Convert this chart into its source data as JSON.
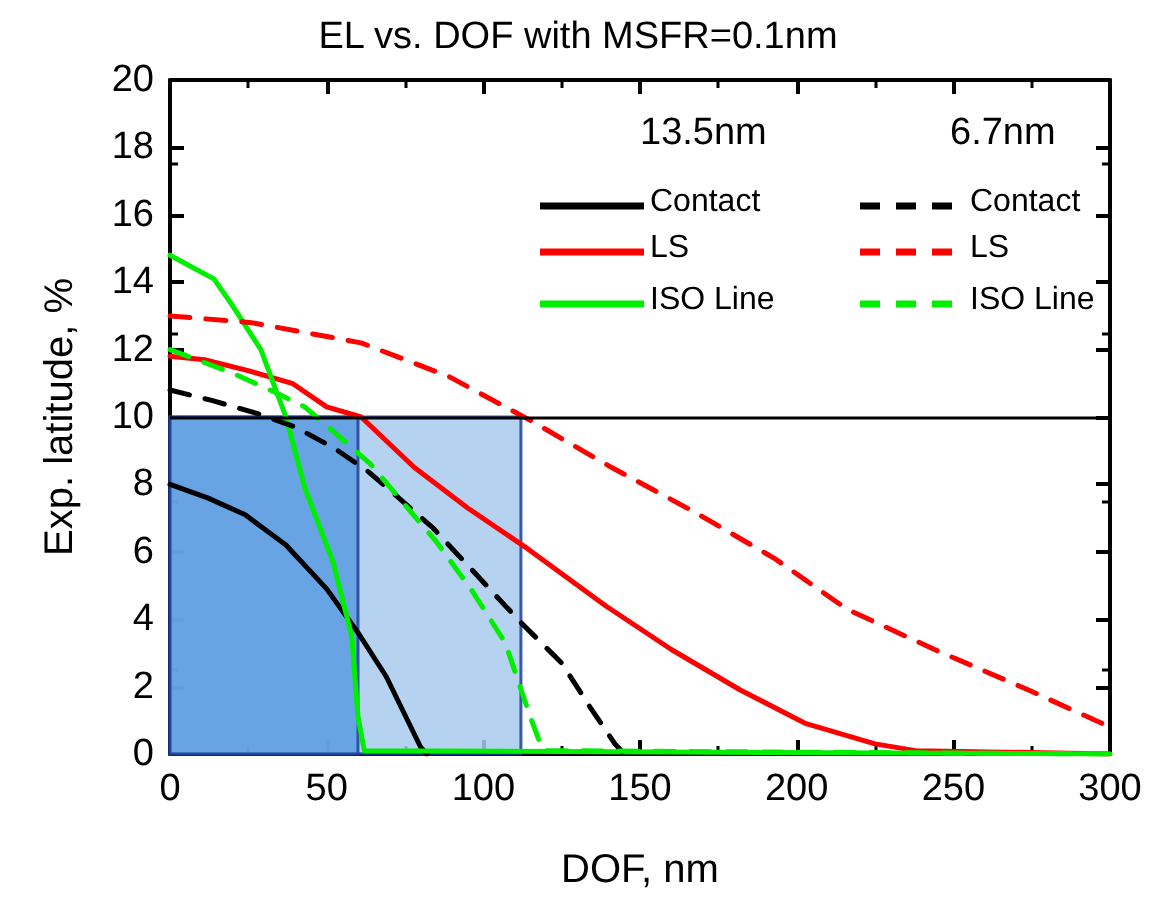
{
  "chart_data": {
    "type": "line",
    "title": "EL vs. DOF with MSFR=0.1nm",
    "xlabel": "DOF, nm",
    "ylabel": "Exp. latitude, %",
    "xlim": [
      0,
      300
    ],
    "xticks": [
      0,
      50,
      100,
      150,
      200,
      250,
      300
    ],
    "ylim": [
      0,
      20
    ],
    "yticks": [
      0,
      2,
      4,
      6,
      8,
      10,
      12,
      14,
      16,
      18,
      20
    ],
    "grid": false,
    "legend": "top right",
    "marker": "none",
    "annotations": [
      "13.5nm",
      "6.7nm"
    ],
    "ref_lines": [
      {
        "axis": "y",
        "value": 10,
        "label": null,
        "color": "#000000"
      }
    ],
    "bands": [
      {
        "axis": "x",
        "from": 0,
        "to": 112,
        "label": null,
        "color": "#a8cbef"
      },
      {
        "axis": "x",
        "from": 0,
        "to": 60,
        "label": null,
        "color": "#5b9be0"
      }
    ],
    "series": [
      {
        "name": "Contact",
        "color": "#000000",
        "line_style": "solid",
        "x": [
          0,
          12,
          24,
          37,
          50,
          60,
          69,
          80,
          82
        ],
        "values": [
          8.0,
          7.6,
          7.1,
          6.2,
          4.9,
          3.6,
          2.3,
          0.2,
          0
        ]
      },
      {
        "name": "LS",
        "color": "#ff0000",
        "line_style": "solid",
        "x": [
          0,
          11,
          24,
          39,
          50,
          61,
          78,
          95,
          114,
          139,
          160,
          182,
          203,
          225,
          238,
          300
        ],
        "values": [
          11.8,
          11.7,
          11.4,
          11.0,
          10.3,
          10.0,
          8.5,
          7.3,
          6.1,
          4.4,
          3.1,
          1.9,
          0.9,
          0.3,
          0.1,
          0
        ]
      },
      {
        "name": "ISO Line",
        "color": "#00ee00",
        "line_style": "solid",
        "x": [
          0,
          14,
          20,
          29,
          33,
          37,
          43,
          52,
          58,
          60,
          62,
          300
        ],
        "values": [
          14.8,
          14.1,
          13.3,
          12.0,
          11.0,
          10.0,
          7.9,
          5.7,
          3.5,
          1.1,
          0.1,
          0
        ]
      },
      {
        "name": "Contact",
        "color": "#000000",
        "line_style": "dashed",
        "x": [
          0,
          13,
          28,
          40,
          52,
          63,
          73,
          84,
          94,
          112,
          125,
          134,
          142,
          145
        ],
        "values": [
          10.8,
          10.5,
          10.1,
          9.7,
          9.1,
          8.4,
          7.6,
          6.7,
          5.7,
          3.9,
          2.7,
          1.4,
          0.3,
          0
        ]
      },
      {
        "name": "LS",
        "color": "#ff0000",
        "line_style": "dashed",
        "x": [
          0,
          26,
          61,
          89,
          115,
          141,
          167,
          193,
          216,
          244,
          274,
          300
        ],
        "values": [
          13.0,
          12.8,
          12.2,
          11.2,
          9.9,
          8.5,
          7.2,
          5.8,
          4.3,
          3.1,
          1.9,
          0.8
        ]
      },
      {
        "name": "ISO Line",
        "color": "#00ee00",
        "line_style": "dashed",
        "x": [
          0,
          20,
          32,
          43,
          53,
          64,
          74,
          85,
          96,
          107,
          115,
          119,
          300
        ],
        "values": [
          12.0,
          11.3,
          10.8,
          10.3,
          9.5,
          8.6,
          7.5,
          6.3,
          4.9,
          3.3,
          1.1,
          0.1,
          0
        ]
      }
    ]
  }
}
